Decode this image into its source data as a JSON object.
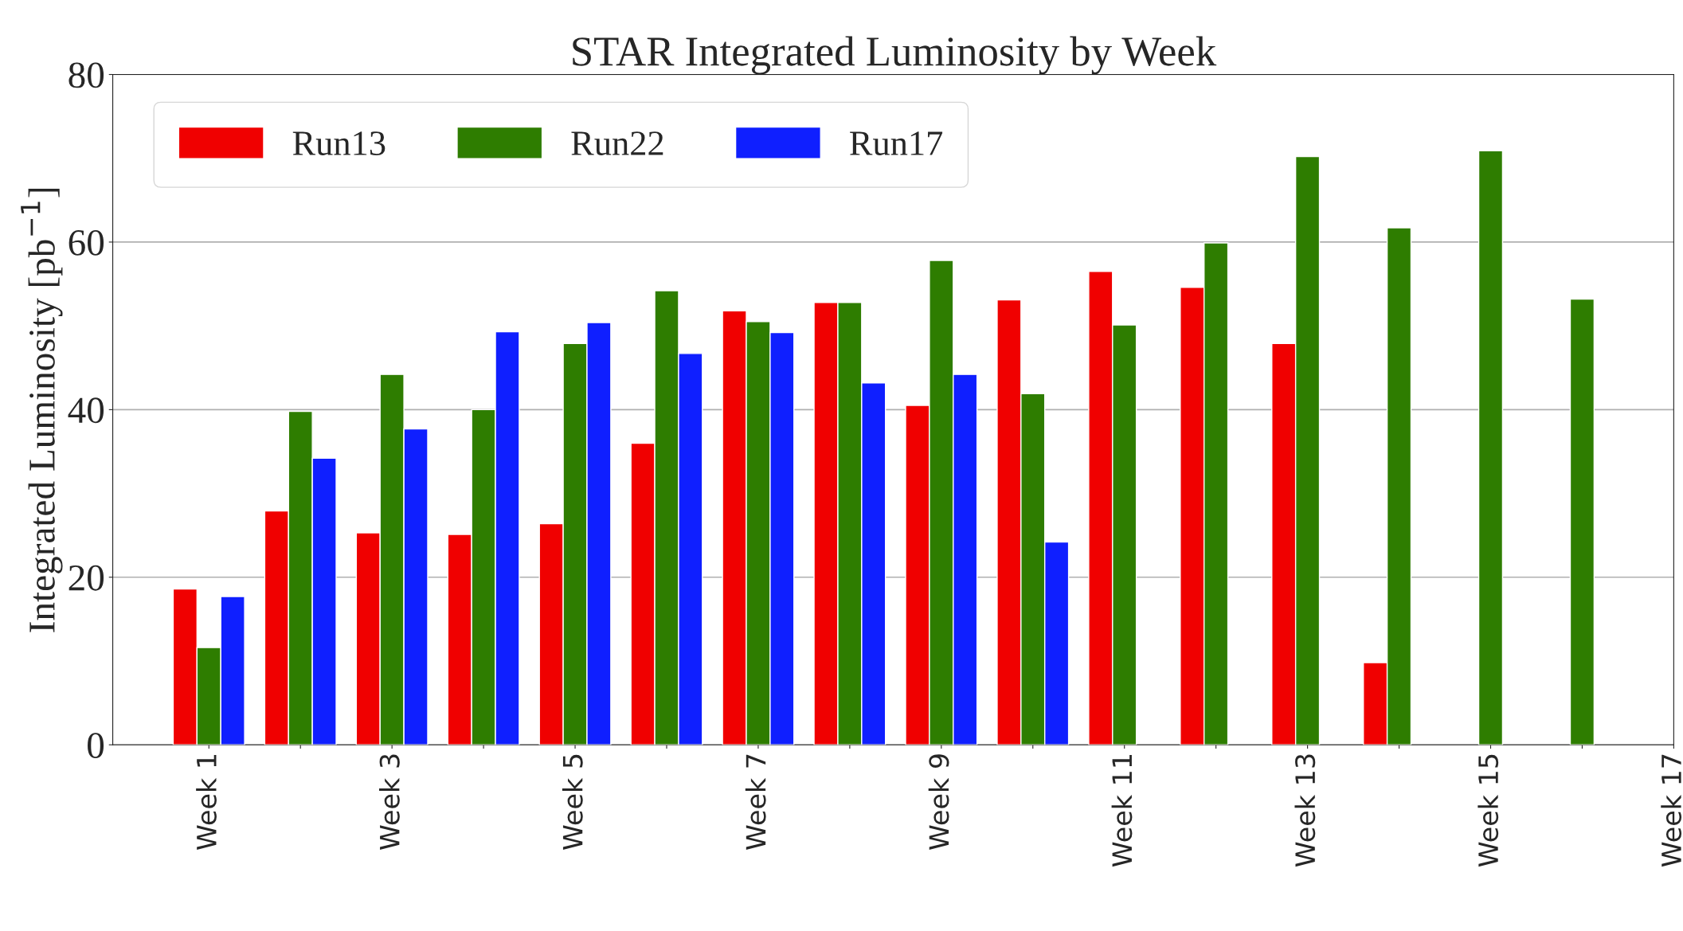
{
  "chart_data": {
    "type": "bar",
    "title": "STAR Integrated Luminosity by Week",
    "ylabel": "Integrated Luminosity [pb$^{−1}$]",
    "categories": [
      "Week 1",
      null,
      "Week 3",
      null,
      "Week 5",
      null,
      "Week 7",
      null,
      "Week 9",
      null,
      "Week 11",
      null,
      "Week 13",
      null,
      "Week 15",
      null,
      "Week 17"
    ],
    "series": [
      {
        "name": "Run13",
        "color": "#f00000",
        "values": [
          18.6,
          27.9,
          25.3,
          25.1,
          26.4,
          36.0,
          51.8,
          52.8,
          40.5,
          53.1,
          56.5,
          54.6,
          47.9,
          9.8,
          null,
          null,
          null
        ]
      },
      {
        "name": "Run22",
        "color": "#2e7d00",
        "values": [
          11.6,
          39.8,
          44.2,
          40.0,
          47.9,
          54.2,
          50.5,
          52.8,
          57.8,
          41.9,
          50.1,
          59.9,
          70.2,
          61.7,
          70.9,
          53.2,
          null
        ]
      },
      {
        "name": "Run17",
        "color": "#0f1fff",
        "values": [
          17.7,
          34.2,
          37.7,
          49.3,
          50.4,
          46.7,
          49.2,
          43.2,
          44.2,
          24.2,
          null,
          null,
          null,
          null,
          null,
          null,
          null
        ]
      }
    ],
    "ylim": [
      0,
      80
    ],
    "yticks": [
      0,
      20,
      40,
      60,
      80
    ],
    "grid": "y",
    "legend": "top left"
  }
}
